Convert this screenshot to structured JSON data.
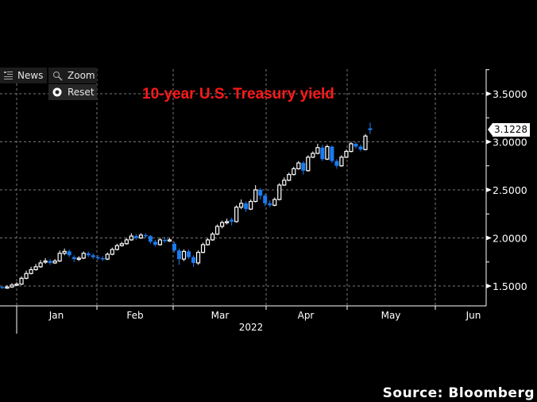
{
  "toolbar": {
    "news_label": "News",
    "zoom_label": "Zoom",
    "reset_label": "Reset",
    "icons": {
      "news": "list-icon",
      "zoom": "magnifier-icon",
      "reset": "circle-reset-icon"
    }
  },
  "source": "Source: Bloomberg",
  "colors": {
    "up": "#ffffff",
    "down": "#1a7bf0",
    "title": "#ff1a1a",
    "grid": "#777777",
    "background": "#000000"
  },
  "chart_data": {
    "type": "candlestick",
    "title": "10-year U.S. Treasury yield",
    "last_value_label": "3.1228",
    "ylim": [
      1.4,
      3.75
    ],
    "yticks": [
      {
        "value": 1.5,
        "label": "1.5000"
      },
      {
        "value": 2.0,
        "label": "2.0000"
      },
      {
        "value": 2.5,
        "label": "2.5000"
      },
      {
        "value": 3.0,
        "label": "3.0000"
      },
      {
        "value": 3.5,
        "label": "3.5000"
      }
    ],
    "xticks": [
      "Jan",
      "Feb",
      "Mar",
      "Apr",
      "May",
      "Jun"
    ],
    "xlabel_year": "2022",
    "grid": true,
    "ohlc": [
      [
        1.49,
        1.5,
        1.47,
        1.48
      ],
      [
        1.48,
        1.51,
        1.47,
        1.49
      ],
      [
        1.49,
        1.53,
        1.48,
        1.51
      ],
      [
        1.51,
        1.54,
        1.5,
        1.52
      ],
      [
        1.52,
        1.6,
        1.51,
        1.58
      ],
      [
        1.58,
        1.66,
        1.57,
        1.63
      ],
      [
        1.63,
        1.7,
        1.62,
        1.67
      ],
      [
        1.67,
        1.73,
        1.66,
        1.7
      ],
      [
        1.7,
        1.77,
        1.69,
        1.74
      ],
      [
        1.75,
        1.79,
        1.73,
        1.76
      ],
      [
        1.76,
        1.78,
        1.72,
        1.74
      ],
      [
        1.74,
        1.78,
        1.73,
        1.76
      ],
      [
        1.76,
        1.87,
        1.75,
        1.84
      ],
      [
        1.84,
        1.89,
        1.82,
        1.86
      ],
      [
        1.86,
        1.88,
        1.8,
        1.82
      ],
      [
        1.8,
        1.82,
        1.75,
        1.78
      ],
      [
        1.78,
        1.81,
        1.76,
        1.79
      ],
      [
        1.79,
        1.86,
        1.78,
        1.84
      ],
      [
        1.84,
        1.86,
        1.8,
        1.82
      ],
      [
        1.82,
        1.84,
        1.78,
        1.8
      ],
      [
        1.8,
        1.82,
        1.77,
        1.79
      ],
      [
        1.79,
        1.81,
        1.76,
        1.78
      ],
      [
        1.78,
        1.85,
        1.77,
        1.83
      ],
      [
        1.83,
        1.9,
        1.82,
        1.88
      ],
      [
        1.88,
        1.94,
        1.87,
        1.92
      ],
      [
        1.92,
        1.96,
        1.91,
        1.94
      ],
      [
        1.94,
        2.0,
        1.93,
        1.98
      ],
      [
        1.98,
        2.05,
        1.97,
        2.02
      ],
      [
        2.02,
        2.04,
        1.98,
        2.0
      ],
      [
        2.0,
        2.05,
        1.99,
        2.03
      ],
      [
        2.03,
        2.05,
        2.0,
        2.02
      ],
      [
        2.02,
        2.03,
        1.94,
        1.96
      ],
      [
        1.96,
        1.98,
        1.91,
        1.93
      ],
      [
        1.93,
        2.0,
        1.92,
        1.98
      ],
      [
        1.98,
        2.01,
        1.95,
        1.97
      ],
      [
        1.97,
        2.0,
        1.96,
        1.98
      ],
      [
        1.94,
        1.96,
        1.85,
        1.87
      ],
      [
        1.87,
        1.89,
        1.72,
        1.78
      ],
      [
        1.78,
        1.88,
        1.76,
        1.86
      ],
      [
        1.86,
        1.88,
        1.78,
        1.8
      ],
      [
        1.8,
        1.82,
        1.7,
        1.74
      ],
      [
        1.74,
        1.87,
        1.72,
        1.85
      ],
      [
        1.85,
        1.95,
        1.84,
        1.93
      ],
      [
        1.93,
        2.0,
        1.92,
        1.98
      ],
      [
        1.98,
        2.06,
        1.97,
        2.04
      ],
      [
        2.04,
        2.14,
        2.03,
        2.12
      ],
      [
        2.12,
        2.18,
        2.1,
        2.16
      ],
      [
        2.16,
        2.2,
        2.14,
        2.17
      ],
      [
        2.19,
        2.21,
        2.13,
        2.17
      ],
      [
        2.17,
        2.34,
        2.16,
        2.32
      ],
      [
        2.32,
        2.4,
        2.3,
        2.36
      ],
      [
        2.36,
        2.38,
        2.27,
        2.3
      ],
      [
        2.3,
        2.4,
        2.29,
        2.38
      ],
      [
        2.38,
        2.55,
        2.37,
        2.5
      ],
      [
        2.5,
        2.52,
        2.4,
        2.44
      ],
      [
        2.44,
        2.46,
        2.33,
        2.36
      ],
      [
        2.36,
        2.39,
        2.32,
        2.34
      ],
      [
        2.34,
        2.42,
        2.33,
        2.4
      ],
      [
        2.4,
        2.57,
        2.39,
        2.55
      ],
      [
        2.55,
        2.63,
        2.54,
        2.6
      ],
      [
        2.6,
        2.68,
        2.59,
        2.66
      ],
      [
        2.66,
        2.74,
        2.65,
        2.72
      ],
      [
        2.72,
        2.8,
        2.71,
        2.78
      ],
      [
        2.78,
        2.8,
        2.66,
        2.7
      ],
      [
        2.7,
        2.86,
        2.69,
        2.84
      ],
      [
        2.84,
        2.9,
        2.83,
        2.88
      ],
      [
        2.88,
        2.98,
        2.87,
        2.94
      ],
      [
        2.94,
        2.97,
        2.8,
        2.82
      ],
      [
        2.82,
        2.97,
        2.81,
        2.95
      ],
      [
        2.95,
        2.96,
        2.78,
        2.8
      ],
      [
        2.8,
        2.82,
        2.72,
        2.75
      ],
      [
        2.75,
        2.86,
        2.74,
        2.84
      ],
      [
        2.84,
        2.92,
        2.83,
        2.9
      ],
      [
        2.9,
        3.0,
        2.89,
        2.98
      ],
      [
        2.98,
        3.0,
        2.93,
        2.95
      ],
      [
        2.95,
        2.97,
        2.9,
        2.92
      ],
      [
        2.92,
        3.08,
        2.91,
        3.06
      ],
      [
        3.14,
        3.2,
        3.08,
        3.1228
      ]
    ]
  }
}
